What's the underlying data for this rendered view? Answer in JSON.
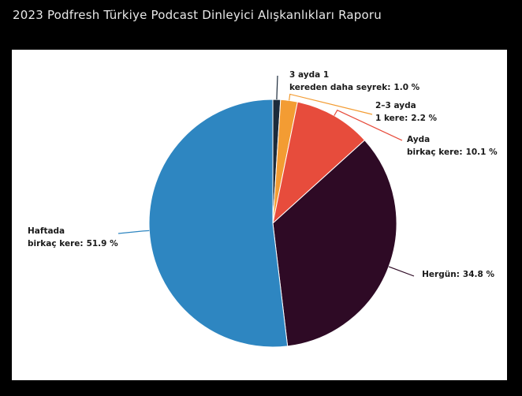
{
  "chart_data": {
    "type": "pie",
    "title": "2023 Podfresh Türkiye Podcast Dinleyici Alışkanlıkları Raporu",
    "categories": [
      [
        "3 ayda 1",
        "kereden daha seyrek:"
      ],
      [
        "2–3 ayda",
        "1 kere:"
      ],
      [
        "Ayda",
        "birkaç kere:"
      ],
      [
        "Hergün:"
      ],
      [
        "Haftada",
        "birkaç kere:"
      ]
    ],
    "values": [
      1.0,
      2.2,
      10.1,
      34.8,
      51.9
    ],
    "value_labels": [
      "1.0 %",
      "2.2 %",
      "10.1 %",
      "34.8 %",
      "51.9 %"
    ],
    "colors": [
      "#1c2b3b",
      "#f39c33",
      "#e74c3c",
      "#2e0a25",
      "#2e86c1"
    ],
    "start_angle": 90,
    "direction": "clockwise"
  }
}
